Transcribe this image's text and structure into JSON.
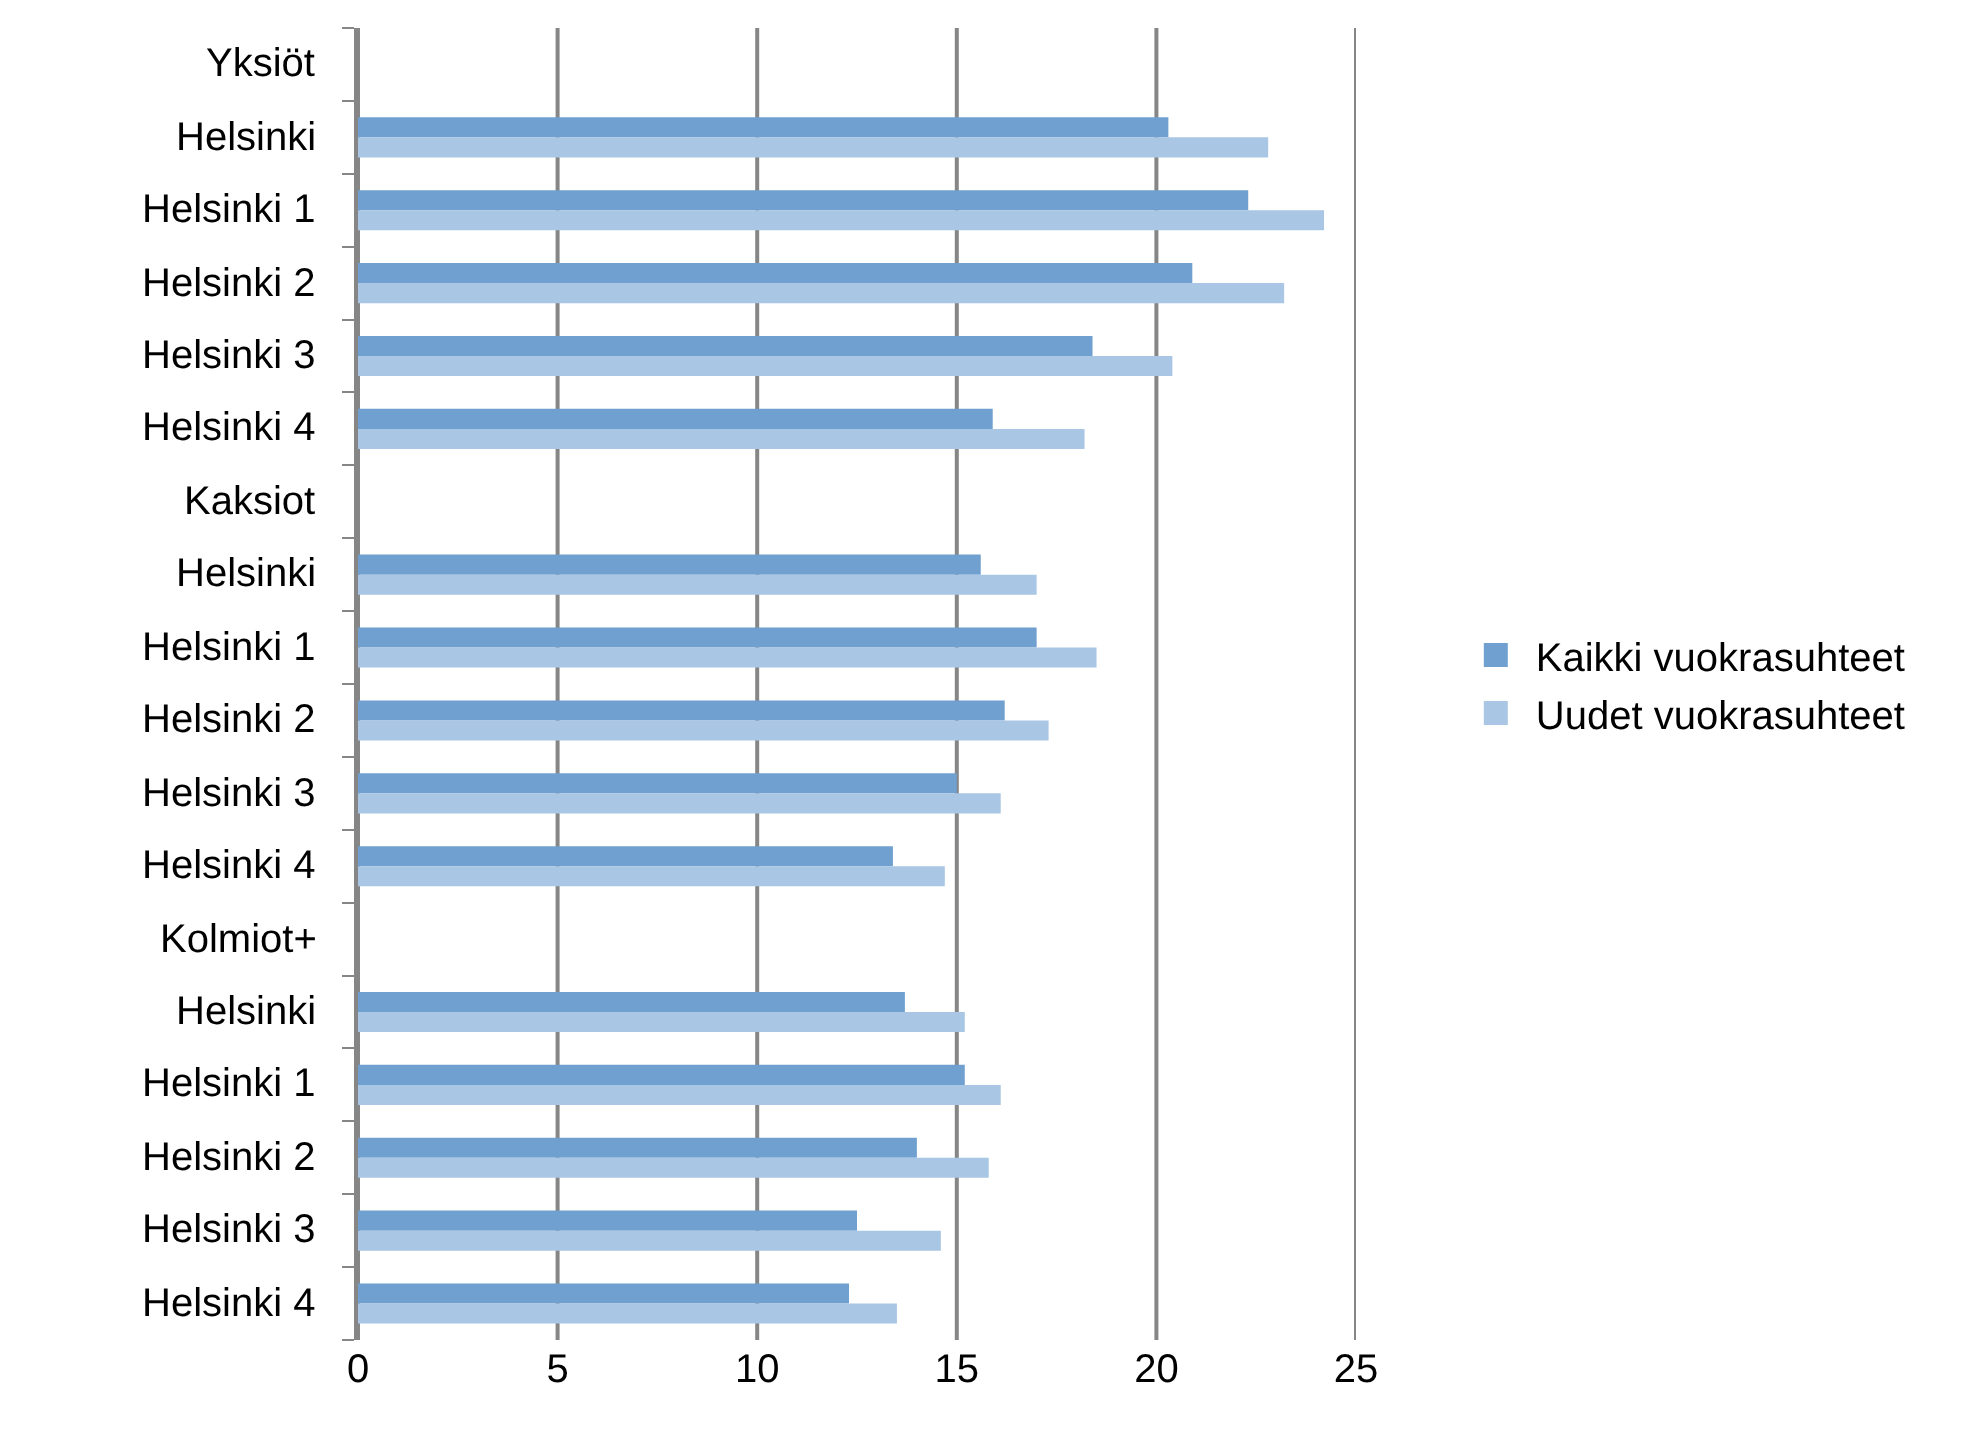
{
  "chart_data": {
    "type": "bar",
    "orientation": "horizontal",
    "categories": [
      "Yksiöt",
      "Helsinki",
      "Helsinki 1",
      "Helsinki 2",
      "Helsinki 3",
      "Helsinki 4",
      "Kaksiot",
      "Helsinki",
      "Helsinki 1",
      "Helsinki 2",
      "Helsinki 3",
      "Helsinki 4",
      "Kolmiot+",
      "Helsinki",
      "Helsinki 1",
      "Helsinki 2",
      "Helsinki 3",
      "Helsinki 4"
    ],
    "series": [
      {
        "name": "Kaikki vuokrasuhteet",
        "color": "#6fa0d0",
        "values": [
          null,
          20.3,
          22.3,
          20.9,
          18.4,
          15.9,
          null,
          15.6,
          17.0,
          16.2,
          15.0,
          13.4,
          null,
          13.7,
          15.2,
          14.0,
          12.5,
          12.3
        ]
      },
      {
        "name": "Uudet vuokrasuhteet",
        "color": "#a9c6e4",
        "values": [
          null,
          22.8,
          24.2,
          23.2,
          20.4,
          18.2,
          null,
          17.0,
          18.5,
          17.3,
          16.1,
          14.7,
          null,
          15.2,
          16.1,
          15.8,
          14.6,
          13.5
        ]
      }
    ],
    "xlim": [
      0,
      25
    ],
    "xticks": [
      0,
      5,
      10,
      15,
      20,
      25
    ],
    "grid": "x",
    "legend": "right"
  }
}
